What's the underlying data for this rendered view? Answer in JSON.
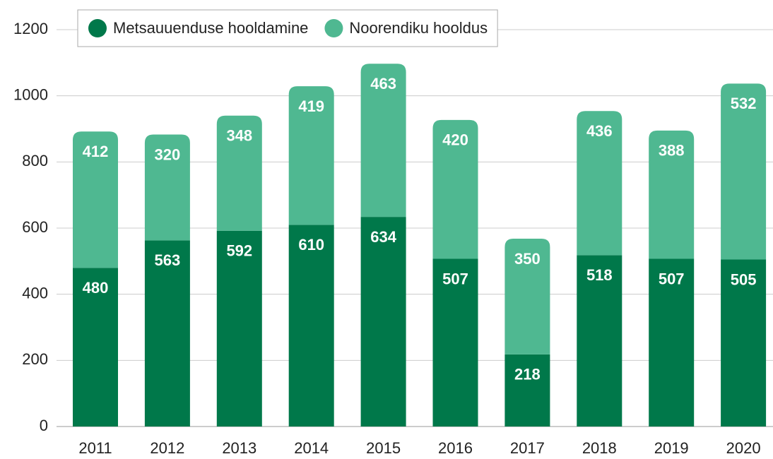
{
  "chart_data": {
    "type": "stacked_bar",
    "categories": [
      "2011",
      "2012",
      "2013",
      "2014",
      "2015",
      "2016",
      "2017",
      "2018",
      "2019",
      "2020"
    ],
    "series": [
      {
        "name": "Metsauuenduse hooldamine",
        "color": "#00784a",
        "values": [
          480,
          563,
          592,
          610,
          634,
          507,
          218,
          518,
          507,
          505
        ]
      },
      {
        "name": "Noorendiku hooldus",
        "color": "#4fb891",
        "values": [
          412,
          320,
          348,
          419,
          463,
          420,
          350,
          436,
          388,
          532
        ]
      }
    ],
    "ylim": [
      0,
      1200
    ],
    "yticks": [
      0,
      200,
      400,
      600,
      800,
      1000,
      1200
    ],
    "grid": true,
    "legend": "upper left"
  }
}
